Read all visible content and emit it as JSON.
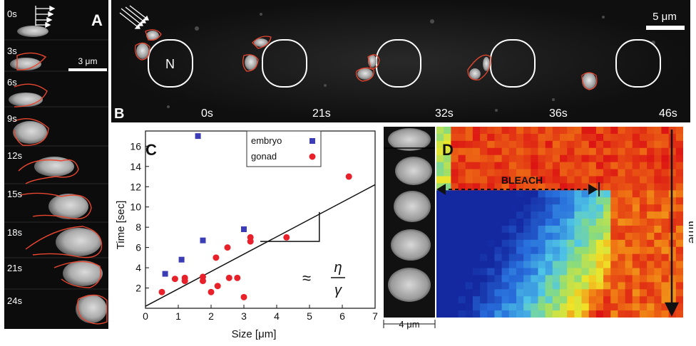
{
  "panel_a": {
    "letter": "A",
    "scale_label": "3 μm",
    "time_labels": [
      "0s",
      "3s",
      "6s",
      "9s",
      "12s",
      "15s",
      "18s",
      "21s",
      "24s"
    ]
  },
  "panel_b": {
    "letter": "B",
    "scale_label": "5 μm",
    "nucleus_label": "N",
    "time_labels": [
      "0s",
      "21s",
      "32s",
      "36s",
      "46s"
    ]
  },
  "panel_c": {
    "letter": "C",
    "approx_symbol": "≈",
    "eta": "η",
    "gamma": "γ"
  },
  "panel_d": {
    "letter": "D",
    "bleach_label": "BLEACH",
    "time_label": "time",
    "scale_label": "4 μm"
  },
  "colors": {
    "outline": "#e8462f",
    "embryo": "#3c3cb4",
    "gonad": "#e8202a",
    "arrow": "#111111"
  },
  "chart_data": {
    "type": "scatter",
    "title": "",
    "xlabel": "Size [μm]",
    "ylabel": "Time [sec]",
    "xlim": [
      0,
      7
    ],
    "ylim": [
      0,
      17.5
    ],
    "x_ticks": [
      0,
      1,
      2,
      3,
      4,
      5,
      6,
      7
    ],
    "y_ticks": [
      2,
      4,
      6,
      8,
      10,
      12,
      14,
      16
    ],
    "legend_position": "top-right",
    "grid": false,
    "fit_line": {
      "x": [
        0,
        7
      ],
      "y": [
        0.2,
        12.2
      ]
    },
    "series": [
      {
        "name": "embryo",
        "marker": "square",
        "color": "#3c3cb4",
        "points": [
          [
            0.6,
            3.4
          ],
          [
            1.1,
            4.8
          ],
          [
            1.6,
            17.0
          ],
          [
            1.75,
            6.7
          ],
          [
            3.0,
            7.8
          ]
        ]
      },
      {
        "name": "gonad",
        "marker": "circle",
        "color": "#e8202a",
        "points": [
          [
            0.5,
            1.6
          ],
          [
            0.9,
            2.9
          ],
          [
            1.2,
            3.0
          ],
          [
            1.2,
            2.7
          ],
          [
            1.75,
            3.1
          ],
          [
            1.75,
            2.7
          ],
          [
            2.0,
            1.6
          ],
          [
            2.15,
            5.0
          ],
          [
            2.2,
            2.2
          ],
          [
            2.5,
            6.0
          ],
          [
            2.55,
            3.0
          ],
          [
            2.8,
            3.0
          ],
          [
            3.0,
            1.1
          ],
          [
            3.2,
            7.0
          ],
          [
            3.2,
            6.6
          ],
          [
            4.3,
            7.0
          ],
          [
            6.2,
            13.0
          ]
        ]
      }
    ]
  }
}
